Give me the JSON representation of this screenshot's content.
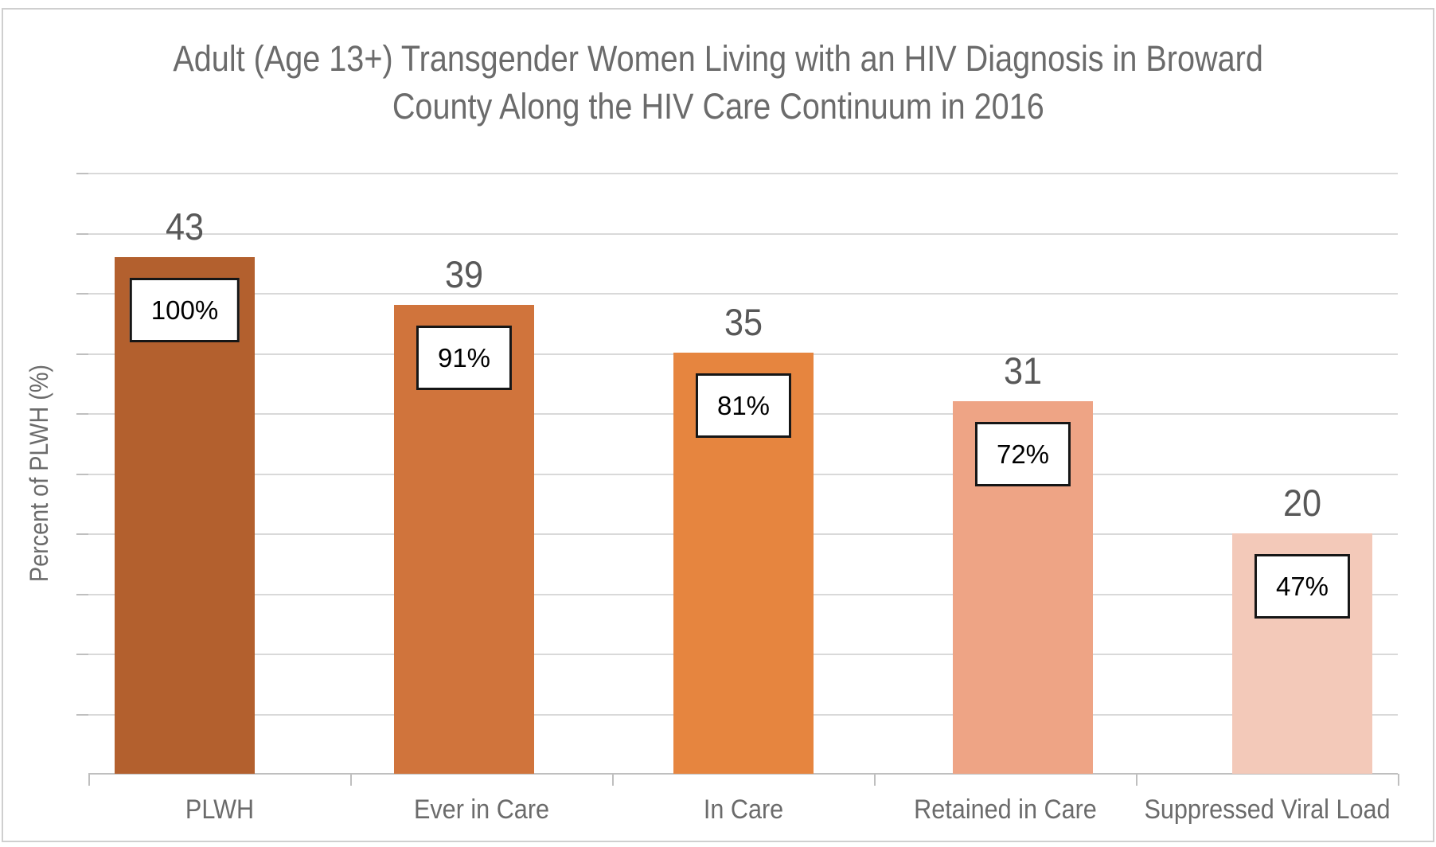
{
  "chart_data": {
    "type": "bar",
    "title": "Adult (Age 13+) Transgender Women Living with an HIV Diagnosis in Broward County Along the HIV Care Continuum in 2016",
    "title_lines": [
      "Adult (Age 13+) Transgender Women Living with an HIV Diagnosis in Broward",
      "County Along the HIV Care Continuum in 2016"
    ],
    "xlabel": "",
    "ylabel": "Percent of PLWH (%)",
    "categories": [
      "PLWH",
      "Ever in Care",
      "In Care",
      "Retained in Care",
      "Suppressed Viral Load"
    ],
    "values": [
      43,
      39,
      35,
      31,
      20
    ],
    "bar_value_labels": [
      "43",
      "39",
      "35",
      "31",
      "20"
    ],
    "percent_labels": [
      "100%",
      "91%",
      "81%",
      "72%",
      "47%"
    ],
    "bar_colors": [
      "#B3602E",
      "#D0743C",
      "#E6853F",
      "#EEA485",
      "#F3C9B9"
    ],
    "ylim": [
      0,
      50
    ],
    "gridline_step": 5,
    "grid": true,
    "y_tick_labels_visible": false,
    "legend": "none",
    "colors": {
      "gridline": "#D9D9D9",
      "axis": "#BFBFBF",
      "title_text": "#6B6B6B",
      "value_text": "#585858",
      "badge_border": "#161616",
      "badge_bg": "#FFFFFF",
      "chart_border": "#CFCFCF"
    }
  }
}
